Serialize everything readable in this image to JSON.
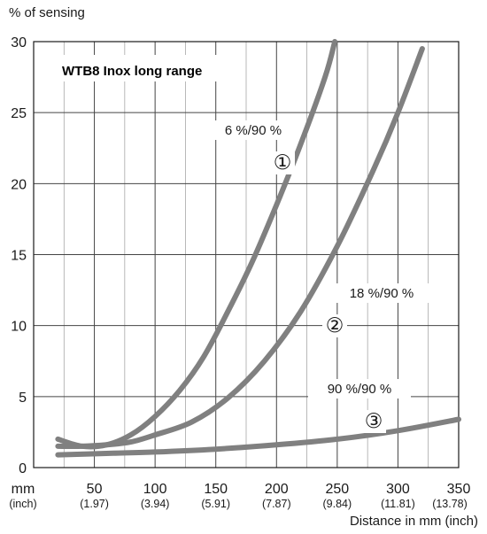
{
  "chart_data": {
    "type": "line",
    "title": "WTB8 Inox long range",
    "ylabel": "% of sensing",
    "xlabel": "Distance in mm (inch)",
    "xlim": [
      0,
      350
    ],
    "ylim": [
      0,
      30
    ],
    "grid": true,
    "x_unit_label": "mm",
    "x_unit_sub_label": "(inch)",
    "x_ticks": [
      {
        "value": 50,
        "label": "50",
        "sub": "(1.97)"
      },
      {
        "value": 100,
        "label": "100",
        "sub": "(3.94)"
      },
      {
        "value": 150,
        "label": "150",
        "sub": "(5.91)"
      },
      {
        "value": 200,
        "label": "200",
        "sub": "(7.87)"
      },
      {
        "value": 250,
        "label": "250",
        "sub": "(9.84)"
      },
      {
        "value": 300,
        "label": "300",
        "sub": "(11.81)"
      },
      {
        "value": 350,
        "label": "350",
        "sub": "(13.78)"
      }
    ],
    "y_ticks": [
      0,
      5,
      10,
      15,
      20,
      25,
      30
    ],
    "series": [
      {
        "name": "6 %/90 %",
        "marker": "①",
        "color": "#808080",
        "x": [
          20,
          40,
          60,
          80,
          100,
          120,
          140,
          160,
          180,
          200,
          220,
          240,
          248
        ],
        "y": [
          2.0,
          1.5,
          1.6,
          2.3,
          3.6,
          5.4,
          7.8,
          11.0,
          14.5,
          18.5,
          22.8,
          27.5,
          30.0
        ]
      },
      {
        "name": "18 %/90 %",
        "marker": "②",
        "color": "#808080",
        "x": [
          20,
          40,
          60,
          80,
          100,
          130,
          160,
          190,
          220,
          250,
          280,
          300,
          320
        ],
        "y": [
          1.5,
          1.5,
          1.6,
          1.8,
          2.3,
          3.2,
          4.9,
          7.5,
          11.0,
          15.6,
          21.0,
          25.0,
          29.5
        ]
      },
      {
        "name": "90 %/90 %",
        "marker": "③",
        "color": "#808080",
        "x": [
          20,
          60,
          100,
          150,
          200,
          250,
          300,
          350
        ],
        "y": [
          0.9,
          1.0,
          1.1,
          1.3,
          1.6,
          2.0,
          2.6,
          3.4
        ]
      }
    ]
  }
}
